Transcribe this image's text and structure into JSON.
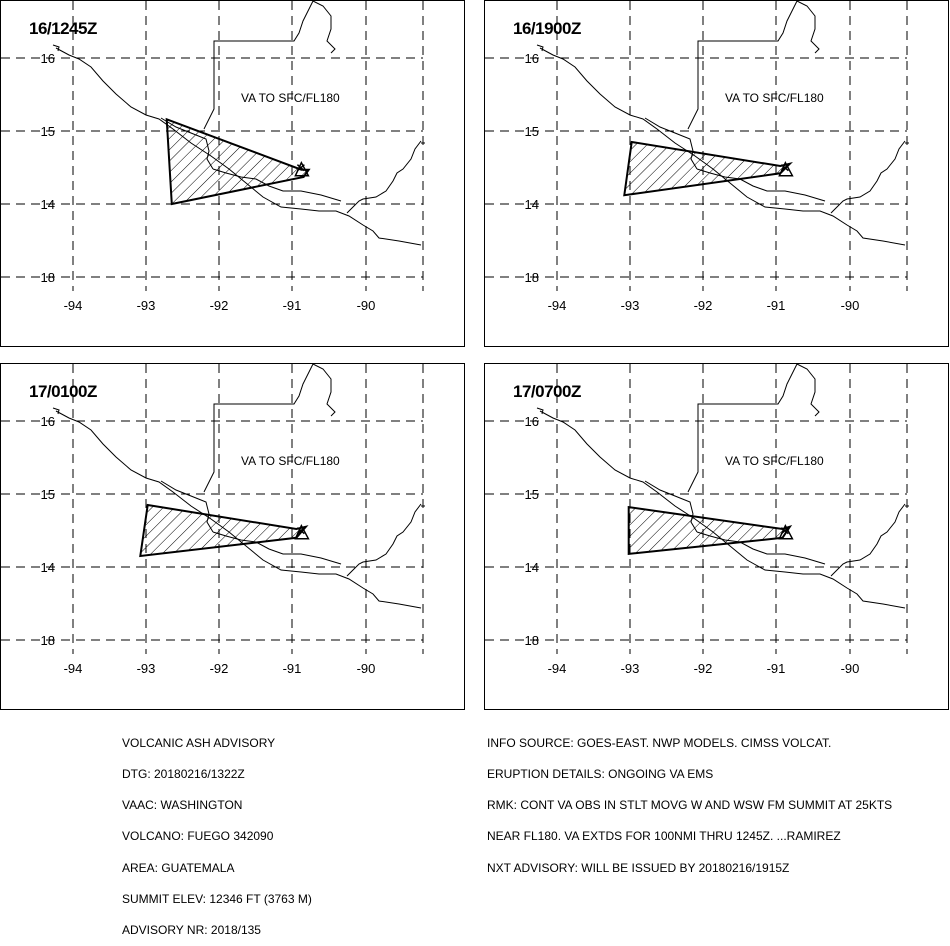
{
  "panels": [
    {
      "time": "16/1245Z",
      "label": "VA TO SFC/FL180",
      "polygon": [
        [
          -92.72,
          15.16
        ],
        [
          -90.88,
          14.47
        ],
        [
          -90.78,
          14.47
        ],
        [
          -90.85,
          14.37
        ],
        [
          -92.65,
          14.0
        ]
      ]
    },
    {
      "time": "16/1900Z",
      "label": "VA TO SFC/FL180",
      "polygon": [
        [
          -92.98,
          14.85
        ],
        [
          -90.95,
          14.52
        ],
        [
          -90.82,
          14.55
        ],
        [
          -90.95,
          14.42
        ],
        [
          -93.08,
          14.12
        ]
      ]
    },
    {
      "time": "17/0100Z",
      "label": "VA TO SFC/FL180",
      "polygon": [
        [
          -92.98,
          14.85
        ],
        [
          -90.95,
          14.52
        ],
        [
          -90.82,
          14.55
        ],
        [
          -90.95,
          14.4
        ],
        [
          -93.08,
          14.15
        ]
      ]
    },
    {
      "time": "17/0700Z",
      "label": "VA TO SFC/FL180",
      "polygon": [
        [
          -93.02,
          14.82
        ],
        [
          -90.92,
          14.52
        ],
        [
          -90.82,
          14.55
        ],
        [
          -90.92,
          14.4
        ],
        [
          -93.02,
          14.18
        ]
      ]
    }
  ],
  "map": {
    "lon_ticks": [
      "-94",
      "-93",
      "-92",
      "-91",
      "-90"
    ],
    "lat_ticks": [
      "16",
      "15",
      "14",
      "18"
    ],
    "volcano": {
      "name": "FUEGO",
      "lon": -90.88,
      "lat": 14.47
    }
  },
  "advisory_left": [
    "VOLCANIC ASH ADVISORY",
    "DTG: 20180216/1322Z",
    "VAAC: WASHINGTON",
    "VOLCANO: FUEGO 342090",
    "AREA: GUATEMALA",
    "SUMMIT ELEV: 12346 FT (3763 M)",
    "ADVISORY NR: 2018/135"
  ],
  "advisory_right": [
    "INFO SOURCE: GOES-EAST. NWP MODELS. CIMSS VOLCAT.",
    "ERUPTION DETAILS: ONGOING VA EMS",
    "RMK: CONT VA OBS IN STLT MOVG W AND WSW FM SUMMIT AT 25KTS",
    "NEAR FL180. VA EXTDS FOR 100NMI THRU 1245Z. ...RAMIREZ",
    "NXT ADVISORY: WILL BE ISSUED BY 20180216/1915Z"
  ]
}
